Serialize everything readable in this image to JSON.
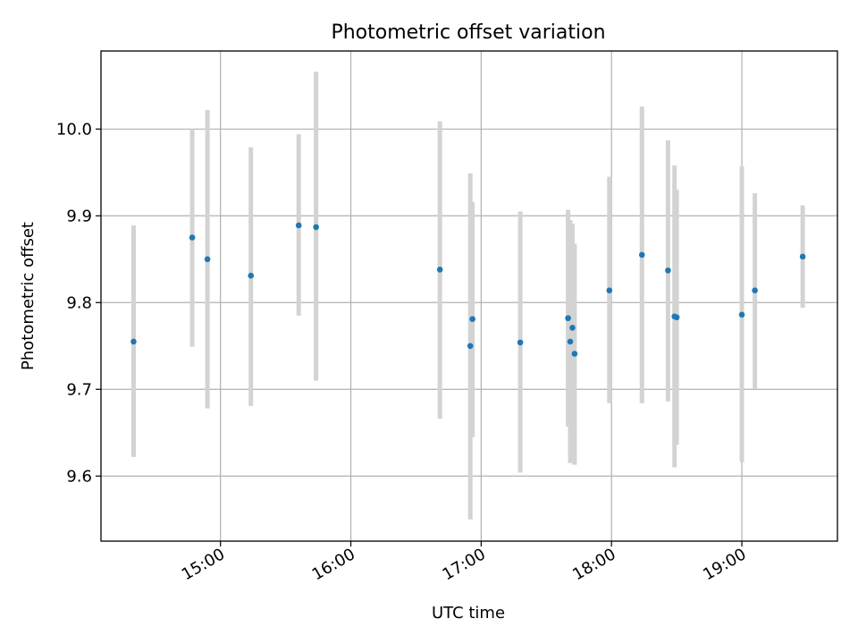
{
  "chart_data": {
    "type": "scatter",
    "title": "Photometric offset variation",
    "xlabel": "UTC time",
    "ylabel": "Photometric offset",
    "grid": true,
    "xlim": [
      "14:05",
      "19:44"
    ],
    "ylim": [
      9.525,
      10.09
    ],
    "x_ticks": [
      "15:00",
      "16:00",
      "17:00",
      "18:00",
      "19:00"
    ],
    "y_ticks": [
      9.6,
      9.7,
      9.8,
      9.9,
      10.0
    ],
    "y_tick_labels": [
      "9.6",
      "9.7",
      "9.8",
      "9.9",
      "10.0"
    ],
    "point_color": "#1f77b4",
    "errorbar_color": "#d3d3d3",
    "series": [
      {
        "points": [
          {
            "x": "14:20",
            "y": 9.755,
            "lo": 9.622,
            "hi": 9.889
          },
          {
            "x": "14:47",
            "y": 9.875,
            "lo": 9.749,
            "hi": 10.0
          },
          {
            "x": "14:54",
            "y": 9.85,
            "lo": 9.678,
            "hi": 10.022
          },
          {
            "x": "15:14",
            "y": 9.831,
            "lo": 9.681,
            "hi": 9.979
          },
          {
            "x": "15:36",
            "y": 9.889,
            "lo": 9.785,
            "hi": 9.994
          },
          {
            "x": "15:44",
            "y": 9.887,
            "lo": 9.71,
            "hi": 10.066
          },
          {
            "x": "16:41",
            "y": 9.838,
            "lo": 9.666,
            "hi": 10.009
          },
          {
            "x": "16:55",
            "y": 9.75,
            "lo": 9.55,
            "hi": 9.949
          },
          {
            "x": "16:56",
            "y": 9.781,
            "lo": 9.645,
            "hi": 9.916
          },
          {
            "x": "17:18",
            "y": 9.754,
            "lo": 9.604,
            "hi": 9.905
          },
          {
            "x": "17:40",
            "y": 9.782,
            "lo": 9.657,
            "hi": 9.907
          },
          {
            "x": "17:41",
            "y": 9.755,
            "lo": 9.615,
            "hi": 9.895
          },
          {
            "x": "17:42",
            "y": 9.771,
            "lo": 9.651,
            "hi": 9.891
          },
          {
            "x": "17:43",
            "y": 9.741,
            "lo": 9.613,
            "hi": 9.868
          },
          {
            "x": "17:59",
            "y": 9.814,
            "lo": 9.684,
            "hi": 9.945
          },
          {
            "x": "18:14",
            "y": 9.855,
            "lo": 9.684,
            "hi": 10.026
          },
          {
            "x": "18:26",
            "y": 9.837,
            "lo": 9.686,
            "hi": 9.987
          },
          {
            "x": "18:29",
            "y": 9.784,
            "lo": 9.61,
            "hi": 9.958
          },
          {
            "x": "18:30",
            "y": 9.783,
            "lo": 9.636,
            "hi": 9.93
          },
          {
            "x": "19:00",
            "y": 9.786,
            "lo": 9.616,
            "hi": 9.957
          },
          {
            "x": "19:06",
            "y": 9.814,
            "lo": 9.701,
            "hi": 9.926
          },
          {
            "x": "19:28",
            "y": 9.853,
            "lo": 9.794,
            "hi": 9.912
          }
        ]
      }
    ]
  }
}
